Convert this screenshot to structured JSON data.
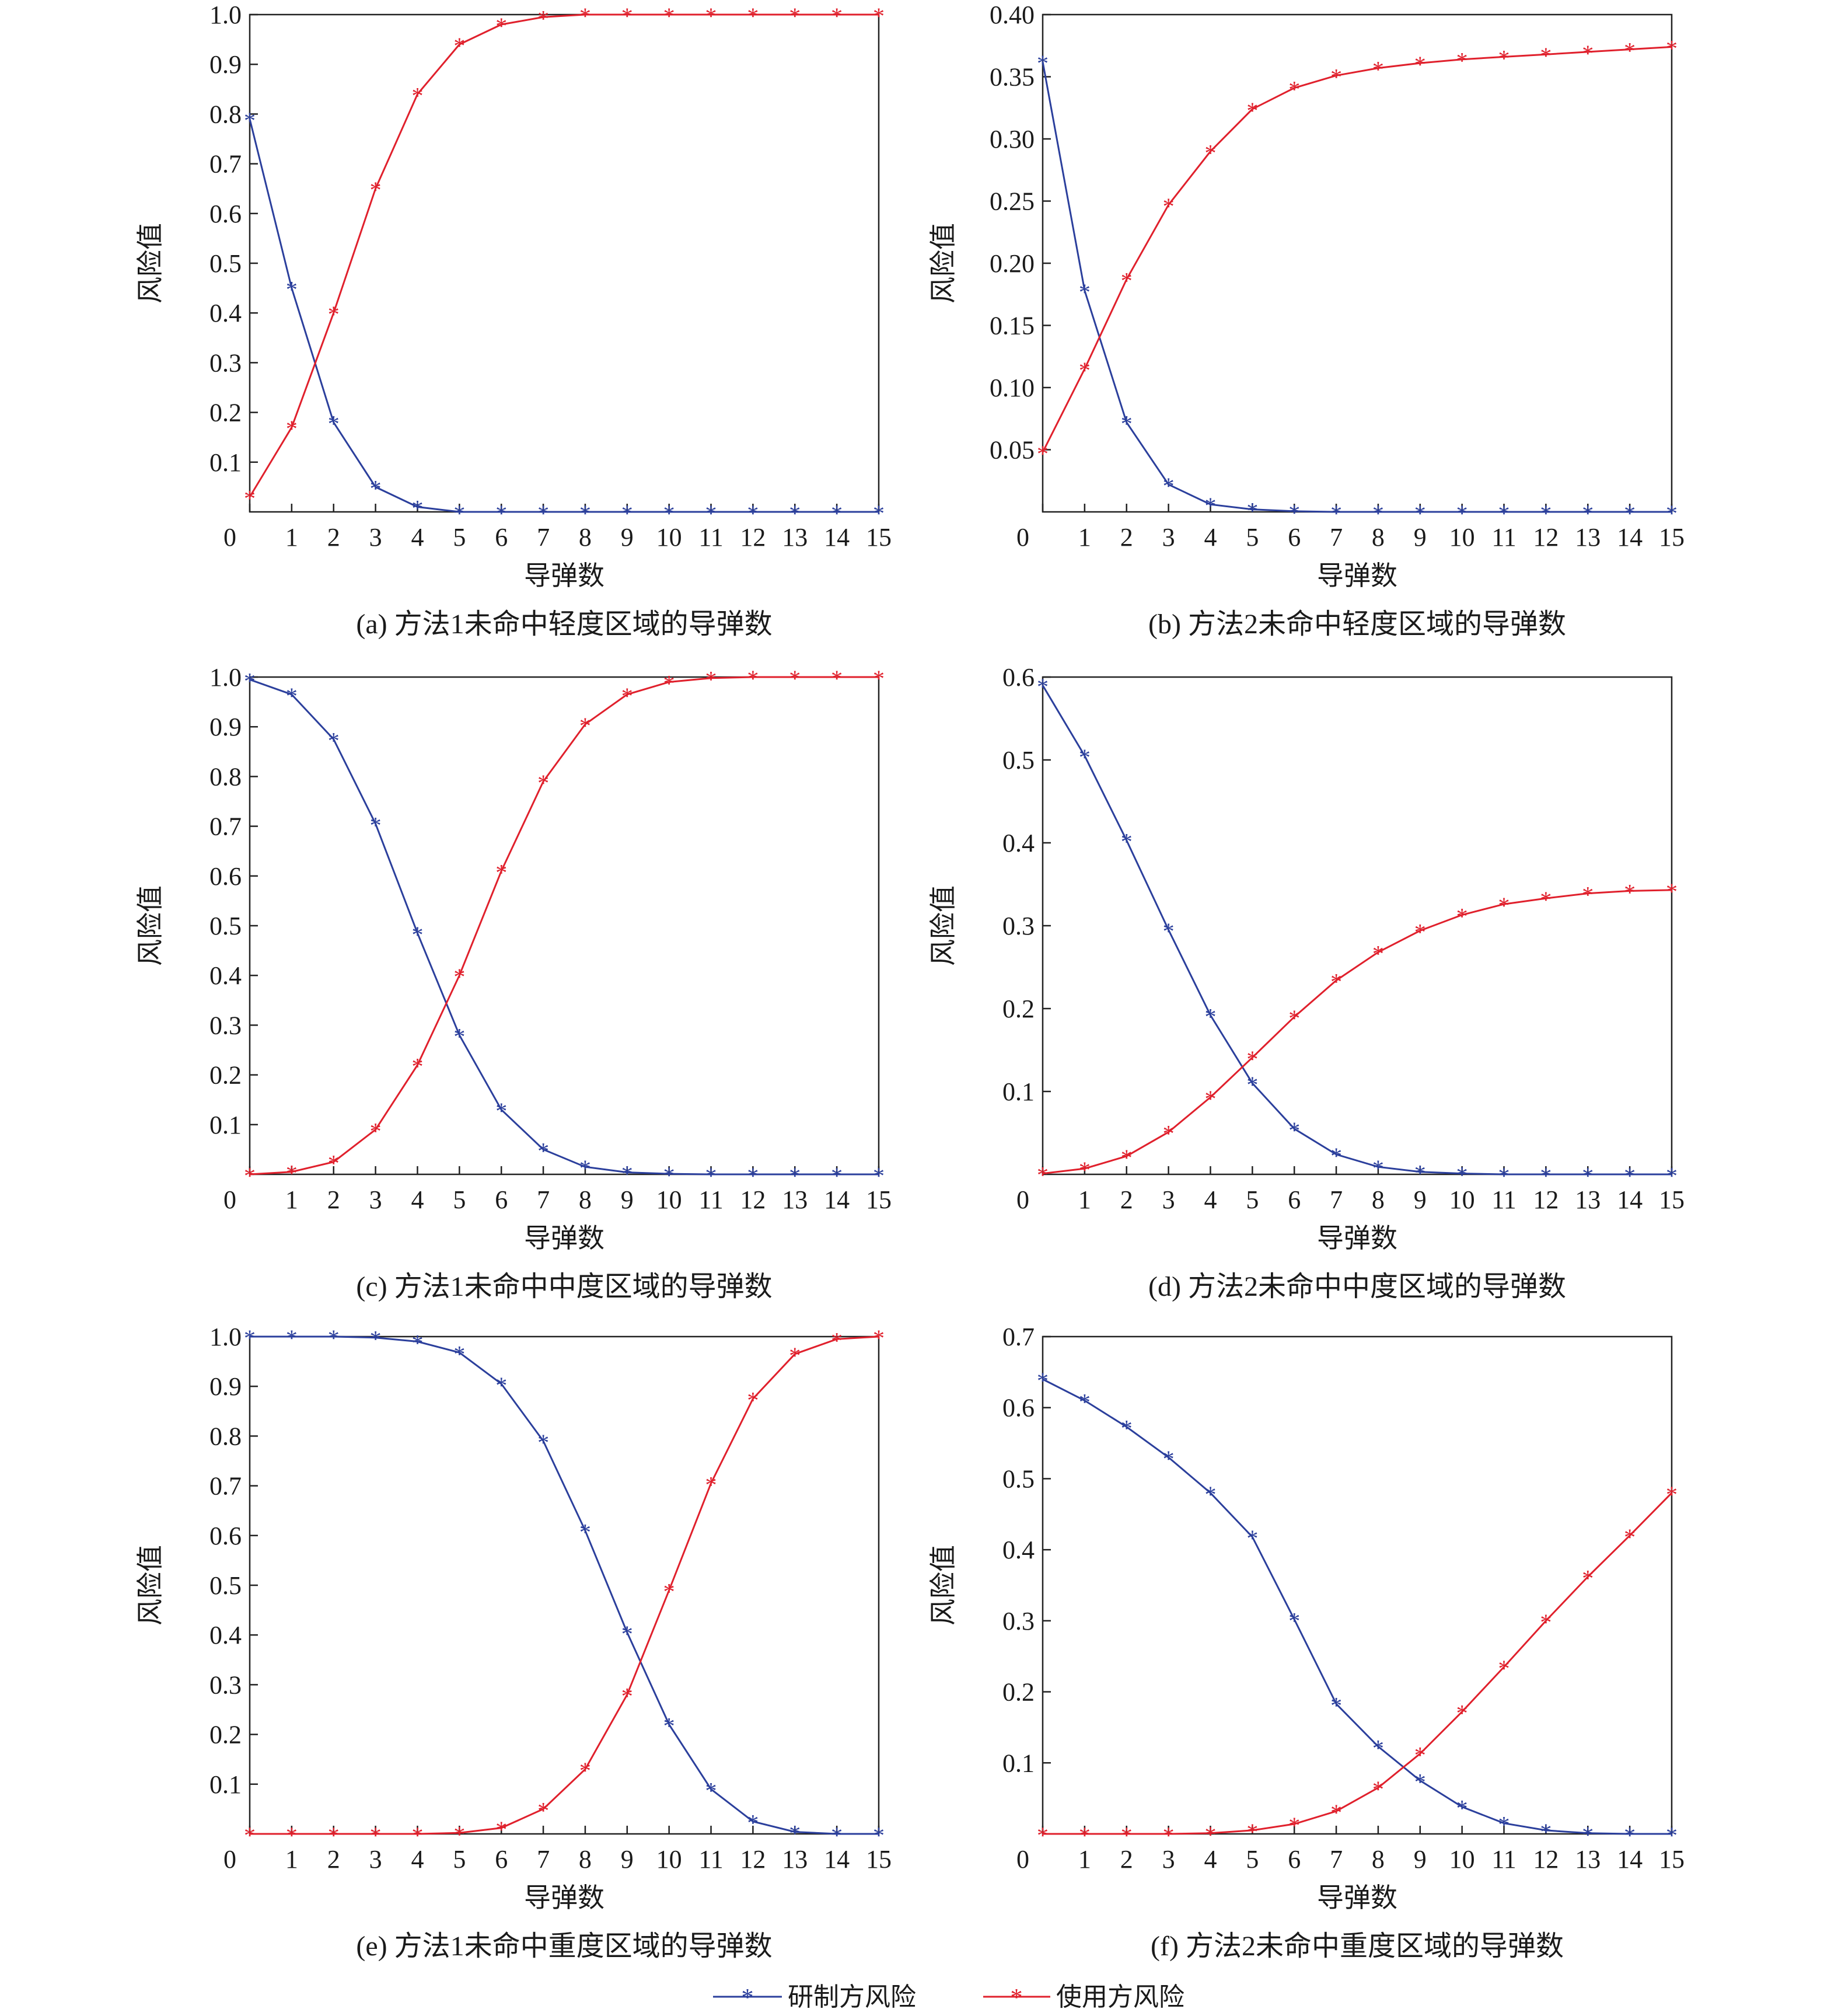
{
  "colors": {
    "series1": "#2b3f9c",
    "series2": "#e0202c",
    "axis": "#222222"
  },
  "legend": {
    "series1": "研制方风险",
    "series2": "使用方风险"
  },
  "chart_data": [
    {
      "type": "line",
      "caption": "(a) 方法1未命中轻度区域的导弹数",
      "xlabel": "导弹数",
      "ylabel": "风险值",
      "xlim": [
        0,
        15
      ],
      "ylim": [
        0,
        1.0
      ],
      "xticks": [
        0,
        1,
        2,
        3,
        4,
        5,
        6,
        7,
        8,
        9,
        10,
        11,
        12,
        13,
        14,
        15
      ],
      "xtick_labels": [
        "0",
        "1",
        "2",
        "3",
        "4",
        "5",
        "6",
        "7",
        "8",
        "9",
        "10",
        "11",
        "12",
        "13",
        "14",
        "15"
      ],
      "yticks": [
        0.1,
        0.2,
        0.3,
        0.4,
        0.5,
        0.6,
        0.7,
        0.8,
        0.9,
        1.0
      ],
      "ytick_labels": [
        "0.1",
        "0.2",
        "0.3",
        "0.4",
        "0.5",
        "0.6",
        "0.7",
        "0.8",
        "0.9",
        "1.0"
      ],
      "x": [
        0,
        1,
        2,
        3,
        4,
        5,
        6,
        7,
        8,
        9,
        10,
        11,
        12,
        13,
        14,
        15
      ],
      "series": [
        {
          "name": "研制方风险",
          "values": [
            0.79,
            0.45,
            0.18,
            0.05,
            0.01,
            0.0,
            0,
            0,
            0,
            0,
            0,
            0,
            0,
            0,
            0,
            0
          ]
        },
        {
          "name": "使用方风险",
          "values": [
            0.03,
            0.17,
            0.4,
            0.65,
            0.84,
            0.94,
            0.98,
            0.995,
            1.0,
            1.0,
            1.0,
            1.0,
            1.0,
            1.0,
            1.0,
            1.0
          ]
        }
      ]
    },
    {
      "type": "line",
      "caption": "(b) 方法2未命中轻度区域的导弹数",
      "xlabel": "导弹数",
      "ylabel": "风险值",
      "xlim": [
        0,
        15
      ],
      "ylim": [
        0,
        0.4
      ],
      "xticks": [
        0,
        1,
        2,
        3,
        4,
        5,
        6,
        7,
        8,
        9,
        10,
        11,
        12,
        13,
        14,
        15
      ],
      "xtick_labels": [
        "0",
        "1",
        "2",
        "3",
        "4",
        "5",
        "6",
        "7",
        "8",
        "9",
        "10",
        "11",
        "12",
        "13",
        "14",
        "15"
      ],
      "yticks": [
        0.05,
        0.1,
        0.15,
        0.2,
        0.25,
        0.3,
        0.35,
        0.4
      ],
      "ytick_labels": [
        "0.05",
        "0.10",
        "0.15",
        "0.20",
        "0.25",
        "0.30",
        "0.35",
        "0.40"
      ],
      "x": [
        0,
        1,
        2,
        3,
        4,
        5,
        6,
        7,
        8,
        9,
        10,
        11,
        12,
        13,
        14,
        15
      ],
      "series": [
        {
          "name": "研制方风险",
          "values": [
            0.362,
            0.178,
            0.072,
            0.022,
            0.006,
            0.002,
            0.0005,
            0,
            0,
            0,
            0,
            0,
            0,
            0,
            0,
            0
          ]
        },
        {
          "name": "使用方风险",
          "values": [
            0.048,
            0.115,
            0.187,
            0.247,
            0.29,
            0.324,
            0.341,
            0.351,
            0.357,
            0.361,
            0.364,
            0.366,
            0.368,
            0.37,
            0.372,
            0.374
          ]
        }
      ]
    },
    {
      "type": "line",
      "caption": "(c) 方法1未命中中度区域的导弹数",
      "xlabel": "导弹数",
      "ylabel": "风险值",
      "xlim": [
        0,
        15
      ],
      "ylim": [
        0,
        1.0
      ],
      "xticks": [
        0,
        1,
        2,
        3,
        4,
        5,
        6,
        7,
        8,
        9,
        10,
        11,
        12,
        13,
        14,
        15
      ],
      "xtick_labels": [
        "0",
        "1",
        "2",
        "3",
        "4",
        "5",
        "6",
        "7",
        "8",
        "9",
        "10",
        "11",
        "12",
        "13",
        "14",
        "15"
      ],
      "yticks": [
        0.1,
        0.2,
        0.3,
        0.4,
        0.5,
        0.6,
        0.7,
        0.8,
        0.9,
        1.0
      ],
      "ytick_labels": [
        "0.1",
        "0.2",
        "0.3",
        "0.4",
        "0.5",
        "0.6",
        "0.7",
        "0.8",
        "0.9",
        "1.0"
      ],
      "x": [
        0,
        1,
        2,
        3,
        4,
        5,
        6,
        7,
        8,
        9,
        10,
        11,
        12,
        13,
        14,
        15
      ],
      "series": [
        {
          "name": "研制方风险",
          "values": [
            0.995,
            0.965,
            0.875,
            0.705,
            0.485,
            0.28,
            0.13,
            0.05,
            0.015,
            0.004,
            0.001,
            0,
            0,
            0,
            0,
            0
          ]
        },
        {
          "name": "使用方风险",
          "values": [
            0.0,
            0.005,
            0.025,
            0.09,
            0.22,
            0.4,
            0.61,
            0.79,
            0.905,
            0.965,
            0.99,
            0.998,
            1.0,
            1.0,
            1.0,
            1.0
          ]
        }
      ]
    },
    {
      "type": "line",
      "caption": "(d) 方法2未命中中度区域的导弹数",
      "xlabel": "导弹数",
      "ylabel": "风险值",
      "xlim": [
        0,
        15
      ],
      "ylim": [
        0,
        0.6
      ],
      "xticks": [
        0,
        1,
        2,
        3,
        4,
        5,
        6,
        7,
        8,
        9,
        10,
        11,
        12,
        13,
        14,
        15
      ],
      "xtick_labels": [
        "0",
        "1",
        "2",
        "3",
        "4",
        "5",
        "6",
        "7",
        "8",
        "9",
        "10",
        "11",
        "12",
        "13",
        "14",
        "15"
      ],
      "yticks": [
        0.1,
        0.2,
        0.3,
        0.4,
        0.5,
        0.6
      ],
      "ytick_labels": [
        "0.1",
        "0.2",
        "0.3",
        "0.4",
        "0.5",
        "0.6"
      ],
      "x": [
        0,
        1,
        2,
        3,
        4,
        5,
        6,
        7,
        8,
        9,
        10,
        11,
        12,
        13,
        14,
        15
      ],
      "series": [
        {
          "name": "研制方风险",
          "values": [
            0.59,
            0.505,
            0.403,
            0.295,
            0.192,
            0.11,
            0.055,
            0.024,
            0.009,
            0.003,
            0.001,
            0,
            0,
            0,
            0,
            0
          ]
        },
        {
          "name": "使用方风险",
          "values": [
            0.001,
            0.007,
            0.022,
            0.051,
            0.093,
            0.141,
            0.19,
            0.234,
            0.268,
            0.294,
            0.313,
            0.326,
            0.333,
            0.339,
            0.342,
            0.343
          ]
        }
      ]
    },
    {
      "type": "line",
      "caption": "(e) 方法1未命中重度区域的导弹数",
      "xlabel": "导弹数",
      "ylabel": "风险值",
      "xlim": [
        0,
        15
      ],
      "ylim": [
        0,
        1.0
      ],
      "xticks": [
        0,
        1,
        2,
        3,
        4,
        5,
        6,
        7,
        8,
        9,
        10,
        11,
        12,
        13,
        14,
        15
      ],
      "xtick_labels": [
        "0",
        "1",
        "2",
        "3",
        "4",
        "5",
        "6",
        "7",
        "8",
        "9",
        "10",
        "11",
        "12",
        "13",
        "14",
        "15"
      ],
      "yticks": [
        0.1,
        0.2,
        0.3,
        0.4,
        0.5,
        0.6,
        0.7,
        0.8,
        0.9,
        1.0
      ],
      "ytick_labels": [
        "0.1",
        "0.2",
        "0.3",
        "0.4",
        "0.5",
        "0.6",
        "0.7",
        "0.8",
        "0.9",
        "1.0"
      ],
      "x": [
        0,
        1,
        2,
        3,
        4,
        5,
        6,
        7,
        8,
        9,
        10,
        11,
        12,
        13,
        14,
        15
      ],
      "series": [
        {
          "name": "研制方风险",
          "values": [
            1.0,
            1.0,
            1.0,
            0.998,
            0.99,
            0.968,
            0.905,
            0.79,
            0.61,
            0.405,
            0.22,
            0.09,
            0.025,
            0.004,
            0.0,
            0.0
          ]
        },
        {
          "name": "使用方风险",
          "values": [
            0,
            0,
            0,
            0,
            0,
            0.002,
            0.012,
            0.05,
            0.13,
            0.28,
            0.49,
            0.705,
            0.875,
            0.965,
            0.995,
            1.0
          ]
        }
      ]
    },
    {
      "type": "line",
      "caption": "(f) 方法2未命中重度区域的导弹数",
      "xlabel": "导弹数",
      "ylabel": "风险值",
      "xlim": [
        0,
        15
      ],
      "ylim": [
        0,
        0.7
      ],
      "xticks": [
        0,
        1,
        2,
        3,
        4,
        5,
        6,
        7,
        8,
        9,
        10,
        11,
        12,
        13,
        14,
        15
      ],
      "xtick_labels": [
        "0",
        "1",
        "2",
        "3",
        "4",
        "5",
        "6",
        "7",
        "8",
        "9",
        "10",
        "11",
        "12",
        "13",
        "14",
        "15"
      ],
      "yticks": [
        0.1,
        0.2,
        0.3,
        0.4,
        0.5,
        0.6,
        0.7
      ],
      "ytick_labels": [
        "0.1",
        "0.2",
        "0.3",
        "0.4",
        "0.5",
        "0.6",
        "0.7"
      ],
      "x": [
        0,
        1,
        2,
        3,
        4,
        5,
        6,
        7,
        8,
        9,
        10,
        11,
        12,
        13,
        14,
        15
      ],
      "series": [
        {
          "name": "研制方风险",
          "values": [
            0.64,
            0.61,
            0.573,
            0.53,
            0.48,
            0.418,
            0.302,
            0.183,
            0.123,
            0.075,
            0.038,
            0.015,
            0.005,
            0.001,
            0,
            0
          ]
        },
        {
          "name": "使用方风险",
          "values": [
            0,
            0,
            0,
            0,
            0.001,
            0.005,
            0.014,
            0.032,
            0.065,
            0.113,
            0.172,
            0.235,
            0.3,
            0.362,
            0.42,
            0.48
          ]
        }
      ]
    }
  ]
}
